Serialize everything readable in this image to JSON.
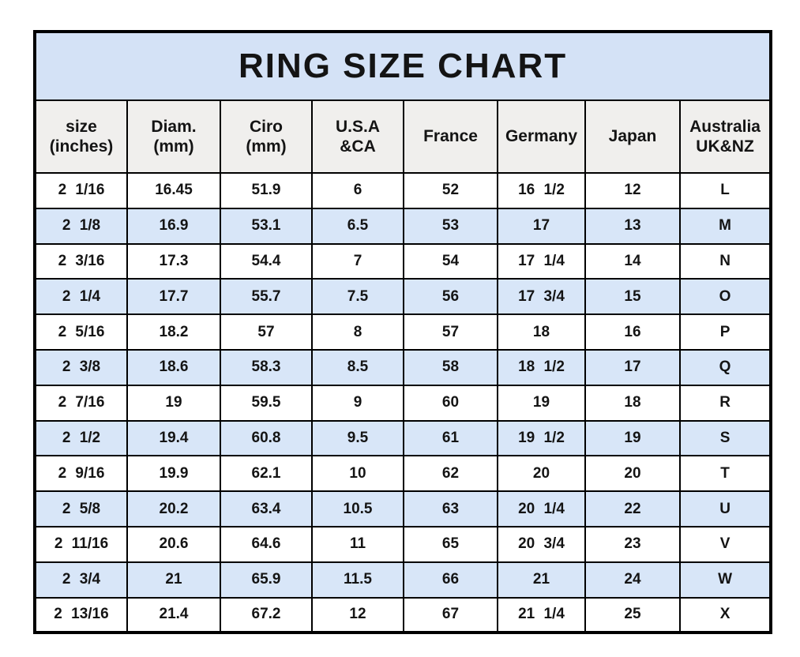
{
  "title": "RING SIZE CHART",
  "colors": {
    "title_bg": "#d4e2f6",
    "header_bg": "#f0efed",
    "row_bg": "#ffffff",
    "row_alt_bg": "#d8e6f8",
    "border_color": "#000000",
    "text_color": "#141414"
  },
  "chart_data": {
    "type": "table",
    "title": "RING SIZE CHART",
    "columns": [
      "size\n(inches)",
      "Diam.\n(mm)",
      "Ciro\n(mm)",
      "U.S.A\n&CA",
      "France",
      "Germany",
      "Japan",
      "Australia\nUK&NZ"
    ],
    "rows": [
      [
        "2 1/16",
        "16.45",
        "51.9",
        "6",
        "52",
        "16 1/2",
        "12",
        "L"
      ],
      [
        "2 1/8",
        "16.9",
        "53.1",
        "6.5",
        "53",
        "17",
        "13",
        "M"
      ],
      [
        "2 3/16",
        "17.3",
        "54.4",
        "7",
        "54",
        "17 1/4",
        "14",
        "N"
      ],
      [
        "2 1/4",
        "17.7",
        "55.7",
        "7.5",
        "56",
        "17 3/4",
        "15",
        "O"
      ],
      [
        "2 5/16",
        "18.2",
        "57",
        "8",
        "57",
        "18",
        "16",
        "P"
      ],
      [
        "2 3/8",
        "18.6",
        "58.3",
        "8.5",
        "58",
        "18 1/2",
        "17",
        "Q"
      ],
      [
        "2 7/16",
        "19",
        "59.5",
        "9",
        "60",
        "19",
        "18",
        "R"
      ],
      [
        "2 1/2",
        "19.4",
        "60.8",
        "9.5",
        "61",
        "19 1/2",
        "19",
        "S"
      ],
      [
        "2 9/16",
        "19.9",
        "62.1",
        "10",
        "62",
        "20",
        "20",
        "T"
      ],
      [
        "2 5/8",
        "20.2",
        "63.4",
        "10.5",
        "63",
        "20 1/4",
        "22",
        "U"
      ],
      [
        "2 11/16",
        "20.6",
        "64.6",
        "11",
        "65",
        "20 3/4",
        "23",
        "V"
      ],
      [
        "2 3/4",
        "21",
        "65.9",
        "11.5",
        "66",
        "21",
        "24",
        "W"
      ],
      [
        "2 13/16",
        "21.4",
        "67.2",
        "12",
        "67",
        "21 1/4",
        "25",
        "X"
      ]
    ]
  }
}
